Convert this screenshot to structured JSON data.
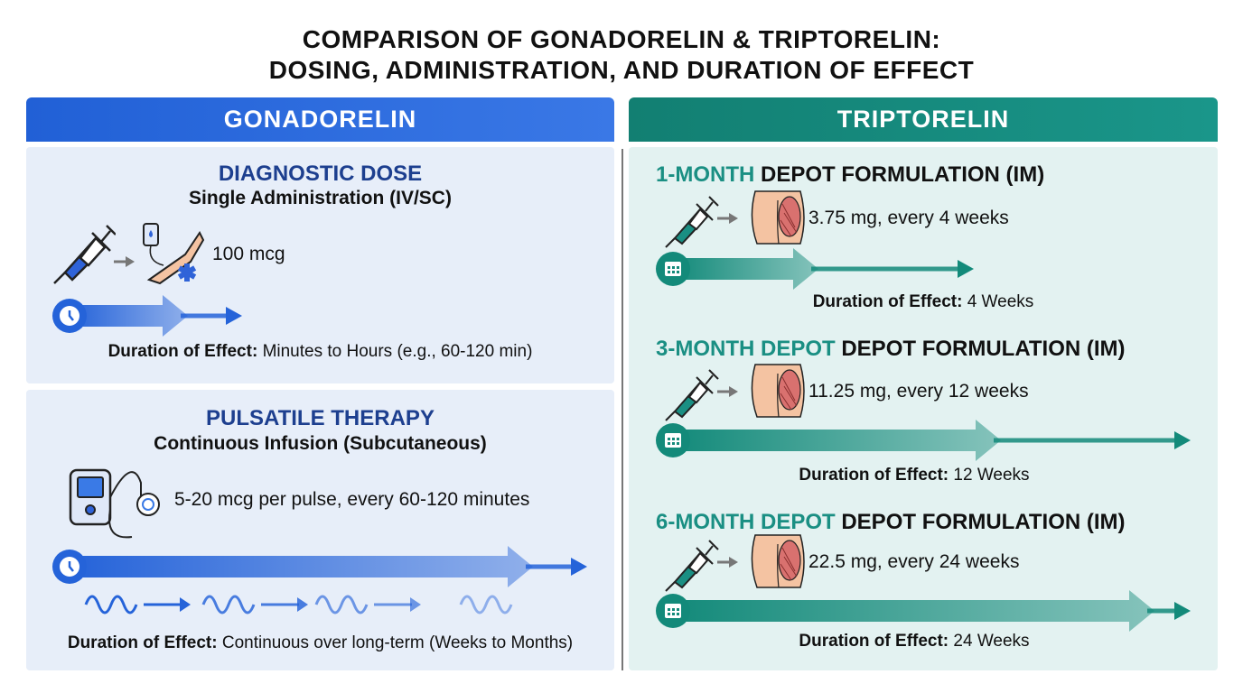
{
  "title": {
    "line1": "COMPARISON OF GONADORELIN & TRIPTORELIN:",
    "line2": "DOSING, ADMINISTRATION, AND DURATION OF EFFECT"
  },
  "colors": {
    "gonadorelin": "#2563d9",
    "triptorelin": "#138a7a"
  },
  "gonadorelin": {
    "header": "GONADORELIN",
    "diagnostic": {
      "heading": "DIAGNOSTIC DOSE",
      "subheading": "Single Administration (IV/SC)",
      "dose": "100 mcg",
      "duration_label": "Duration of Effect:",
      "duration_value": "Minutes to Hours (e.g., 60-120 min)"
    },
    "pulsatile": {
      "heading": "PULSATILE THERAPY",
      "subheading": "Continuous Infusion (Subcutaneous)",
      "dose": "5-20 mcg per pulse, every 60-120 minutes",
      "duration_label": "Duration of Effect:",
      "duration_value": "Continuous over long-term (Weeks to Months)"
    }
  },
  "triptorelin": {
    "header": "TRIPTORELIN",
    "formulations": [
      {
        "prefix": "1-MONTH",
        "heading": "DEPOT FORMULATION (IM)",
        "dose": "3.75 mg, every 4 weeks",
        "duration_label": "Duration of Effect:",
        "duration_value": "4 Weeks"
      },
      {
        "prefix": "3-MONTH DEPOT",
        "heading": "DEPOT FORMULATION (IM)",
        "dose": "11.25 mg, every 12 weeks",
        "duration_label": "Duration of Effect:",
        "duration_value": "12 Weeks"
      },
      {
        "prefix": "6-MONTH DEPOT",
        "heading": "DEPOT FORMULATION (IM)",
        "dose": "22.5 mg, every 24 weeks",
        "duration_label": "Duration of Effect:",
        "duration_value": "24 Weeks"
      }
    ]
  }
}
